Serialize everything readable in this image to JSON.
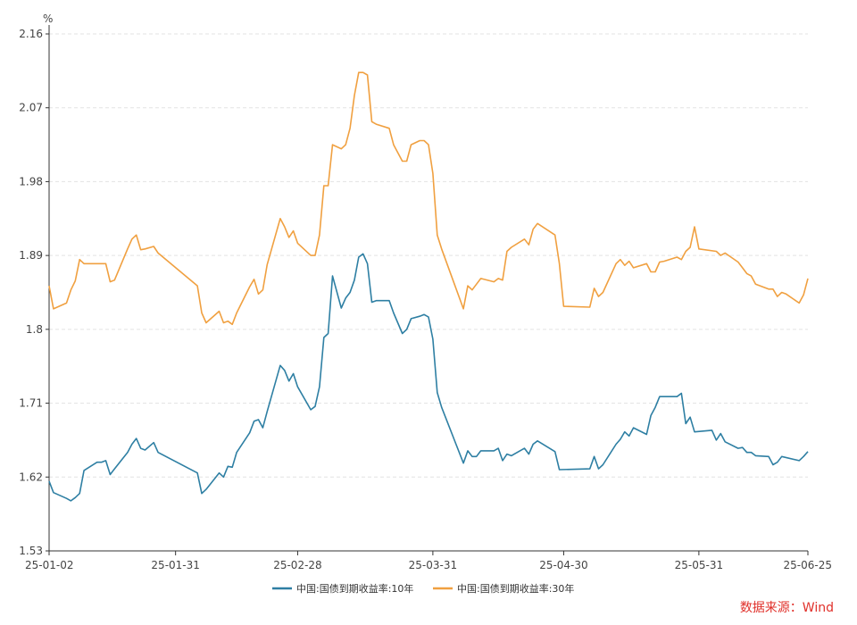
{
  "source": "数据来源：Wind",
  "chart_data": {
    "type": "line",
    "title": "",
    "ylabel": "%",
    "xlabel": "",
    "ylim": [
      1.53,
      2.16
    ],
    "yticks": [
      "1.53",
      "1.62",
      "1.71",
      "1.8",
      "1.89",
      "1.98",
      "2.07",
      "2.16"
    ],
    "xlim": [
      "2025-01-02",
      "2025-06-25"
    ],
    "xticks": [
      {
        "date": "2025-01-02",
        "label": "25-01-02"
      },
      {
        "date": "2025-01-31",
        "label": "25-01-31"
      },
      {
        "date": "2025-02-28",
        "label": "25-02-28"
      },
      {
        "date": "2025-03-31",
        "label": "25-03-31"
      },
      {
        "date": "2025-04-30",
        "label": "25-04-30"
      },
      {
        "date": "2025-05-31",
        "label": "25-05-31"
      },
      {
        "date": "2025-06-25",
        "label": "25-06-25"
      }
    ],
    "grid": "horizontal-dashed",
    "legend": "bottom",
    "series": [
      {
        "name": "中国:国债到期收益率:10年",
        "color": "#2e7fa3",
        "points": [
          [
            "2025-01-02",
            1.615
          ],
          [
            "2025-01-03",
            1.601
          ],
          [
            "2025-01-06",
            1.594
          ],
          [
            "2025-01-07",
            1.591
          ],
          [
            "2025-01-08",
            1.595
          ],
          [
            "2025-01-09",
            1.6
          ],
          [
            "2025-01-10",
            1.628
          ],
          [
            "2025-01-13",
            1.638
          ],
          [
            "2025-01-14",
            1.638
          ],
          [
            "2025-01-15",
            1.64
          ],
          [
            "2025-01-16",
            1.623
          ],
          [
            "2025-01-17",
            1.63
          ],
          [
            "2025-01-20",
            1.65
          ],
          [
            "2025-01-21",
            1.66
          ],
          [
            "2025-01-22",
            1.667
          ],
          [
            "2025-01-23",
            1.655
          ],
          [
            "2025-01-24",
            1.653
          ],
          [
            "2025-01-26",
            1.662
          ],
          [
            "2025-01-27",
            1.65
          ],
          [
            "2025-02-05",
            1.625
          ],
          [
            "2025-02-06",
            1.6
          ],
          [
            "2025-02-07",
            1.605
          ],
          [
            "2025-02-10",
            1.625
          ],
          [
            "2025-02-11",
            1.62
          ],
          [
            "2025-02-12",
            1.633
          ],
          [
            "2025-02-13",
            1.632
          ],
          [
            "2025-02-14",
            1.65
          ],
          [
            "2025-02-17",
            1.674
          ],
          [
            "2025-02-18",
            1.688
          ],
          [
            "2025-02-19",
            1.69
          ],
          [
            "2025-02-20",
            1.68
          ],
          [
            "2025-02-21",
            1.7
          ],
          [
            "2025-02-24",
            1.756
          ],
          [
            "2025-02-25",
            1.75
          ],
          [
            "2025-02-26",
            1.737
          ],
          [
            "2025-02-27",
            1.746
          ],
          [
            "2025-02-28",
            1.73
          ],
          [
            "2025-03-03",
            1.702
          ],
          [
            "2025-03-04",
            1.706
          ],
          [
            "2025-03-05",
            1.73
          ],
          [
            "2025-03-06",
            1.79
          ],
          [
            "2025-03-07",
            1.795
          ],
          [
            "2025-03-08",
            1.865
          ],
          [
            "2025-03-10",
            1.826
          ],
          [
            "2025-03-11",
            1.838
          ],
          [
            "2025-03-12",
            1.845
          ],
          [
            "2025-03-13",
            1.86
          ],
          [
            "2025-03-14",
            1.888
          ],
          [
            "2025-03-15",
            1.892
          ],
          [
            "2025-03-16",
            1.88
          ],
          [
            "2025-03-17",
            1.833
          ],
          [
            "2025-03-18",
            1.835
          ],
          [
            "2025-03-21",
            1.835
          ],
          [
            "2025-03-22",
            1.82
          ],
          [
            "2025-03-24",
            1.795
          ],
          [
            "2025-03-25",
            1.8
          ],
          [
            "2025-03-26",
            1.813
          ],
          [
            "2025-03-28",
            1.816
          ],
          [
            "2025-03-29",
            1.818
          ],
          [
            "2025-03-30",
            1.815
          ],
          [
            "2025-03-31",
            1.788
          ],
          [
            "2025-04-01",
            1.723
          ],
          [
            "2025-04-02",
            1.705
          ],
          [
            "2025-04-07",
            1.637
          ],
          [
            "2025-04-08",
            1.652
          ],
          [
            "2025-04-09",
            1.645
          ],
          [
            "2025-04-10",
            1.645
          ],
          [
            "2025-04-11",
            1.652
          ],
          [
            "2025-04-14",
            1.652
          ],
          [
            "2025-04-15",
            1.655
          ],
          [
            "2025-04-16",
            1.64
          ],
          [
            "2025-04-17",
            1.648
          ],
          [
            "2025-04-18",
            1.646
          ],
          [
            "2025-04-21",
            1.655
          ],
          [
            "2025-04-22",
            1.648
          ],
          [
            "2025-04-23",
            1.66
          ],
          [
            "2025-04-24",
            1.664
          ],
          [
            "2025-04-28",
            1.651
          ],
          [
            "2025-04-29",
            1.629
          ],
          [
            "2025-05-06",
            1.63
          ],
          [
            "2025-05-07",
            1.645
          ],
          [
            "2025-05-08",
            1.63
          ],
          [
            "2025-05-09",
            1.635
          ],
          [
            "2025-05-12",
            1.66
          ],
          [
            "2025-05-13",
            1.666
          ],
          [
            "2025-05-14",
            1.675
          ],
          [
            "2025-05-15",
            1.67
          ],
          [
            "2025-05-16",
            1.68
          ],
          [
            "2025-05-19",
            1.672
          ],
          [
            "2025-05-20",
            1.695
          ],
          [
            "2025-05-21",
            1.705
          ],
          [
            "2025-05-22",
            1.718
          ],
          [
            "2025-05-26",
            1.718
          ],
          [
            "2025-05-27",
            1.722
          ],
          [
            "2025-05-28",
            1.685
          ],
          [
            "2025-05-29",
            1.693
          ],
          [
            "2025-05-30",
            1.675
          ],
          [
            "2025-06-03",
            1.677
          ],
          [
            "2025-06-04",
            1.665
          ],
          [
            "2025-06-05",
            1.673
          ],
          [
            "2025-06-06",
            1.663
          ],
          [
            "2025-06-09",
            1.655
          ],
          [
            "2025-06-10",
            1.656
          ],
          [
            "2025-06-11",
            1.65
          ],
          [
            "2025-06-12",
            1.65
          ],
          [
            "2025-06-13",
            1.646
          ],
          [
            "2025-06-16",
            1.645
          ],
          [
            "2025-06-17",
            1.635
          ],
          [
            "2025-06-18",
            1.638
          ],
          [
            "2025-06-19",
            1.645
          ],
          [
            "2025-06-23",
            1.64
          ],
          [
            "2025-06-24",
            1.645
          ],
          [
            "2025-06-25",
            1.651
          ]
        ]
      },
      {
        "name": "中国:国债到期收益率:30年",
        "color": "#f0a040",
        "points": [
          [
            "2025-01-02",
            1.853
          ],
          [
            "2025-01-03",
            1.825
          ],
          [
            "2025-01-06",
            1.832
          ],
          [
            "2025-01-07",
            1.848
          ],
          [
            "2025-01-08",
            1.859
          ],
          [
            "2025-01-09",
            1.885
          ],
          [
            "2025-01-10",
            1.88
          ],
          [
            "2025-01-13",
            1.88
          ],
          [
            "2025-01-14",
            1.88
          ],
          [
            "2025-01-15",
            1.88
          ],
          [
            "2025-01-16",
            1.858
          ],
          [
            "2025-01-17",
            1.86
          ],
          [
            "2025-01-20",
            1.898
          ],
          [
            "2025-01-21",
            1.91
          ],
          [
            "2025-01-22",
            1.915
          ],
          [
            "2025-01-23",
            1.897
          ],
          [
            "2025-01-24",
            1.898
          ],
          [
            "2025-01-26",
            1.901
          ],
          [
            "2025-01-27",
            1.893
          ],
          [
            "2025-02-05",
            1.853
          ],
          [
            "2025-02-06",
            1.82
          ],
          [
            "2025-02-07",
            1.808
          ],
          [
            "2025-02-10",
            1.822
          ],
          [
            "2025-02-11",
            1.808
          ],
          [
            "2025-02-12",
            1.81
          ],
          [
            "2025-02-13",
            1.806
          ],
          [
            "2025-02-14",
            1.82
          ],
          [
            "2025-02-17",
            1.852
          ],
          [
            "2025-02-18",
            1.861
          ],
          [
            "2025-02-19",
            1.843
          ],
          [
            "2025-02-20",
            1.848
          ],
          [
            "2025-02-21",
            1.879
          ],
          [
            "2025-02-24",
            1.935
          ],
          [
            "2025-02-25",
            1.925
          ],
          [
            "2025-02-26",
            1.912
          ],
          [
            "2025-02-27",
            1.92
          ],
          [
            "2025-02-28",
            1.905
          ],
          [
            "2025-03-03",
            1.89
          ],
          [
            "2025-03-04",
            1.89
          ],
          [
            "2025-03-05",
            1.915
          ],
          [
            "2025-03-06",
            1.975
          ],
          [
            "2025-03-07",
            1.975
          ],
          [
            "2025-03-08",
            2.025
          ],
          [
            "2025-03-10",
            2.02
          ],
          [
            "2025-03-11",
            2.025
          ],
          [
            "2025-03-12",
            2.045
          ],
          [
            "2025-03-13",
            2.085
          ],
          [
            "2025-03-14",
            2.113
          ],
          [
            "2025-03-15",
            2.113
          ],
          [
            "2025-03-16",
            2.11
          ],
          [
            "2025-03-17",
            2.053
          ],
          [
            "2025-03-18",
            2.05
          ],
          [
            "2025-03-21",
            2.045
          ],
          [
            "2025-03-22",
            2.025
          ],
          [
            "2025-03-24",
            2.005
          ],
          [
            "2025-03-25",
            2.005
          ],
          [
            "2025-03-26",
            2.025
          ],
          [
            "2025-03-28",
            2.03
          ],
          [
            "2025-03-29",
            2.03
          ],
          [
            "2025-03-30",
            2.025
          ],
          [
            "2025-03-31",
            1.99
          ],
          [
            "2025-04-01",
            1.915
          ],
          [
            "2025-04-02",
            1.898
          ],
          [
            "2025-04-07",
            1.825
          ],
          [
            "2025-04-08",
            1.853
          ],
          [
            "2025-04-09",
            1.848
          ],
          [
            "2025-04-10",
            1.855
          ],
          [
            "2025-04-11",
            1.862
          ],
          [
            "2025-04-14",
            1.858
          ],
          [
            "2025-04-15",
            1.862
          ],
          [
            "2025-04-16",
            1.86
          ],
          [
            "2025-04-17",
            1.895
          ],
          [
            "2025-04-18",
            1.9
          ],
          [
            "2025-04-21",
            1.91
          ],
          [
            "2025-04-22",
            1.903
          ],
          [
            "2025-04-23",
            1.922
          ],
          [
            "2025-04-24",
            1.929
          ],
          [
            "2025-04-28",
            1.915
          ],
          [
            "2025-04-29",
            1.88
          ],
          [
            "2025-04-30",
            1.828
          ],
          [
            "2025-05-06",
            1.827
          ],
          [
            "2025-05-07",
            1.85
          ],
          [
            "2025-05-08",
            1.84
          ],
          [
            "2025-05-09",
            1.845
          ],
          [
            "2025-05-12",
            1.88
          ],
          [
            "2025-05-13",
            1.885
          ],
          [
            "2025-05-14",
            1.878
          ],
          [
            "2025-05-15",
            1.883
          ],
          [
            "2025-05-16",
            1.875
          ],
          [
            "2025-05-19",
            1.88
          ],
          [
            "2025-05-20",
            1.87
          ],
          [
            "2025-05-21",
            1.87
          ],
          [
            "2025-05-22",
            1.882
          ],
          [
            "2025-05-23",
            1.883
          ],
          [
            "2025-05-26",
            1.888
          ],
          [
            "2025-05-27",
            1.885
          ],
          [
            "2025-05-28",
            1.895
          ],
          [
            "2025-05-29",
            1.9
          ],
          [
            "2025-05-30",
            1.925
          ],
          [
            "2025-05-31",
            1.898
          ],
          [
            "2025-06-04",
            1.895
          ],
          [
            "2025-06-05",
            1.89
          ],
          [
            "2025-06-06",
            1.893
          ],
          [
            "2025-06-09",
            1.882
          ],
          [
            "2025-06-10",
            1.875
          ],
          [
            "2025-06-11",
            1.868
          ],
          [
            "2025-06-12",
            1.865
          ],
          [
            "2025-06-13",
            1.855
          ],
          [
            "2025-06-16",
            1.849
          ],
          [
            "2025-06-17",
            1.849
          ],
          [
            "2025-06-18",
            1.84
          ],
          [
            "2025-06-19",
            1.845
          ],
          [
            "2025-06-20",
            1.843
          ],
          [
            "2025-06-23",
            1.832
          ],
          [
            "2025-06-24",
            1.842
          ],
          [
            "2025-06-25",
            1.862
          ]
        ]
      }
    ]
  }
}
